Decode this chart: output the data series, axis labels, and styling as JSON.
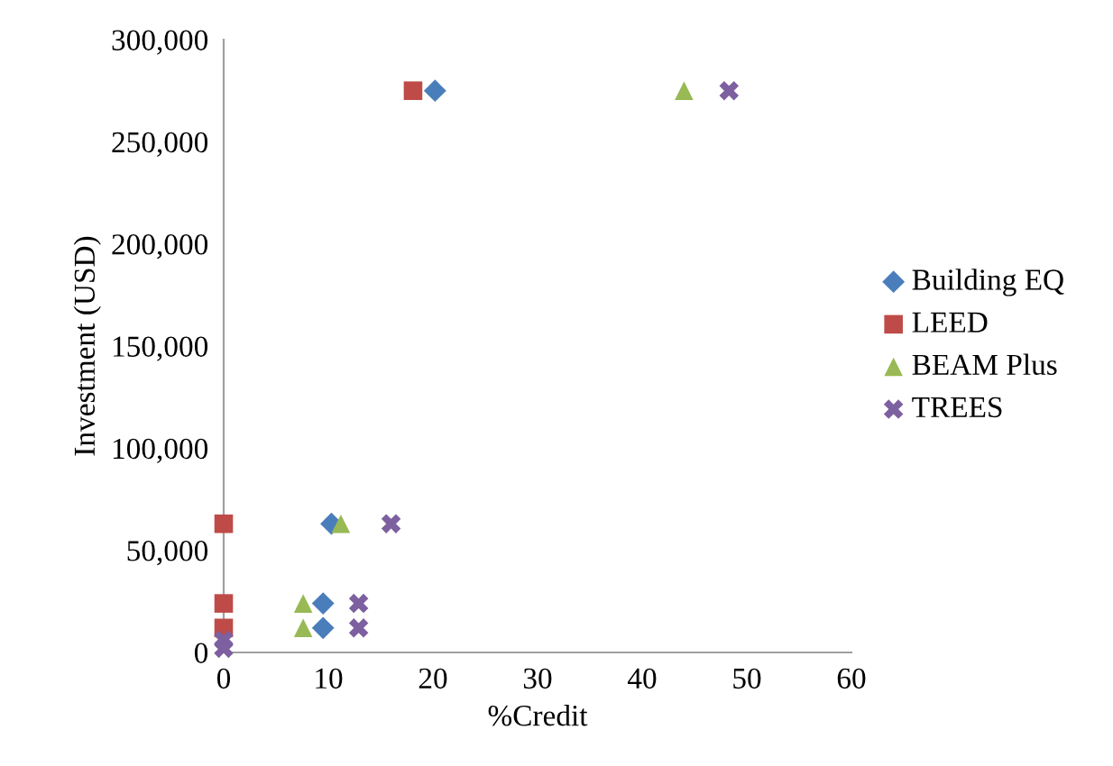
{
  "chart_data": {
    "type": "scatter",
    "xlabel": "%Credit",
    "ylabel": "Investment (USD)",
    "xlim": [
      0,
      60
    ],
    "xticks": [
      0,
      10,
      20,
      30,
      40,
      50,
      60
    ],
    "ylim": [
      0,
      300000
    ],
    "yticks": [
      {
        "value": 0,
        "label": "0"
      },
      {
        "value": 50000,
        "label": "50,000"
      },
      {
        "value": 100000,
        "label": "100,000"
      },
      {
        "value": 150000,
        "label": "150,000"
      },
      {
        "value": 200000,
        "label": "200,000"
      },
      {
        "value": 250000,
        "label": "250,000"
      },
      {
        "value": 300000,
        "label": "300,000"
      }
    ],
    "grid": false,
    "legend": "right",
    "series": [
      {
        "name": "Building EQ",
        "color": "#4a7ebb",
        "marker": "diamond",
        "x": [
          20.2,
          10.3,
          9.5,
          9.5
        ],
        "values": [
          275000,
          63000,
          24000,
          12000
        ]
      },
      {
        "name": "LEED",
        "color": "#be4b48",
        "marker": "square",
        "x": [
          18.1,
          0,
          0,
          0
        ],
        "values": [
          275000,
          63000,
          24000,
          12000
        ]
      },
      {
        "name": "BEAM Plus",
        "color": "#98b954",
        "marker": "triangle",
        "x": [
          44,
          11.2,
          7.6,
          7.6
        ],
        "values": [
          275000,
          63000,
          24000,
          12000
        ]
      },
      {
        "name": "TREES",
        "color": "#7d60a0",
        "marker": "cross",
        "x": [
          48.3,
          16,
          12.9,
          12.9,
          0,
          0
        ],
        "values": [
          275000,
          63000,
          24000,
          12000,
          6000,
          2000
        ]
      }
    ]
  }
}
